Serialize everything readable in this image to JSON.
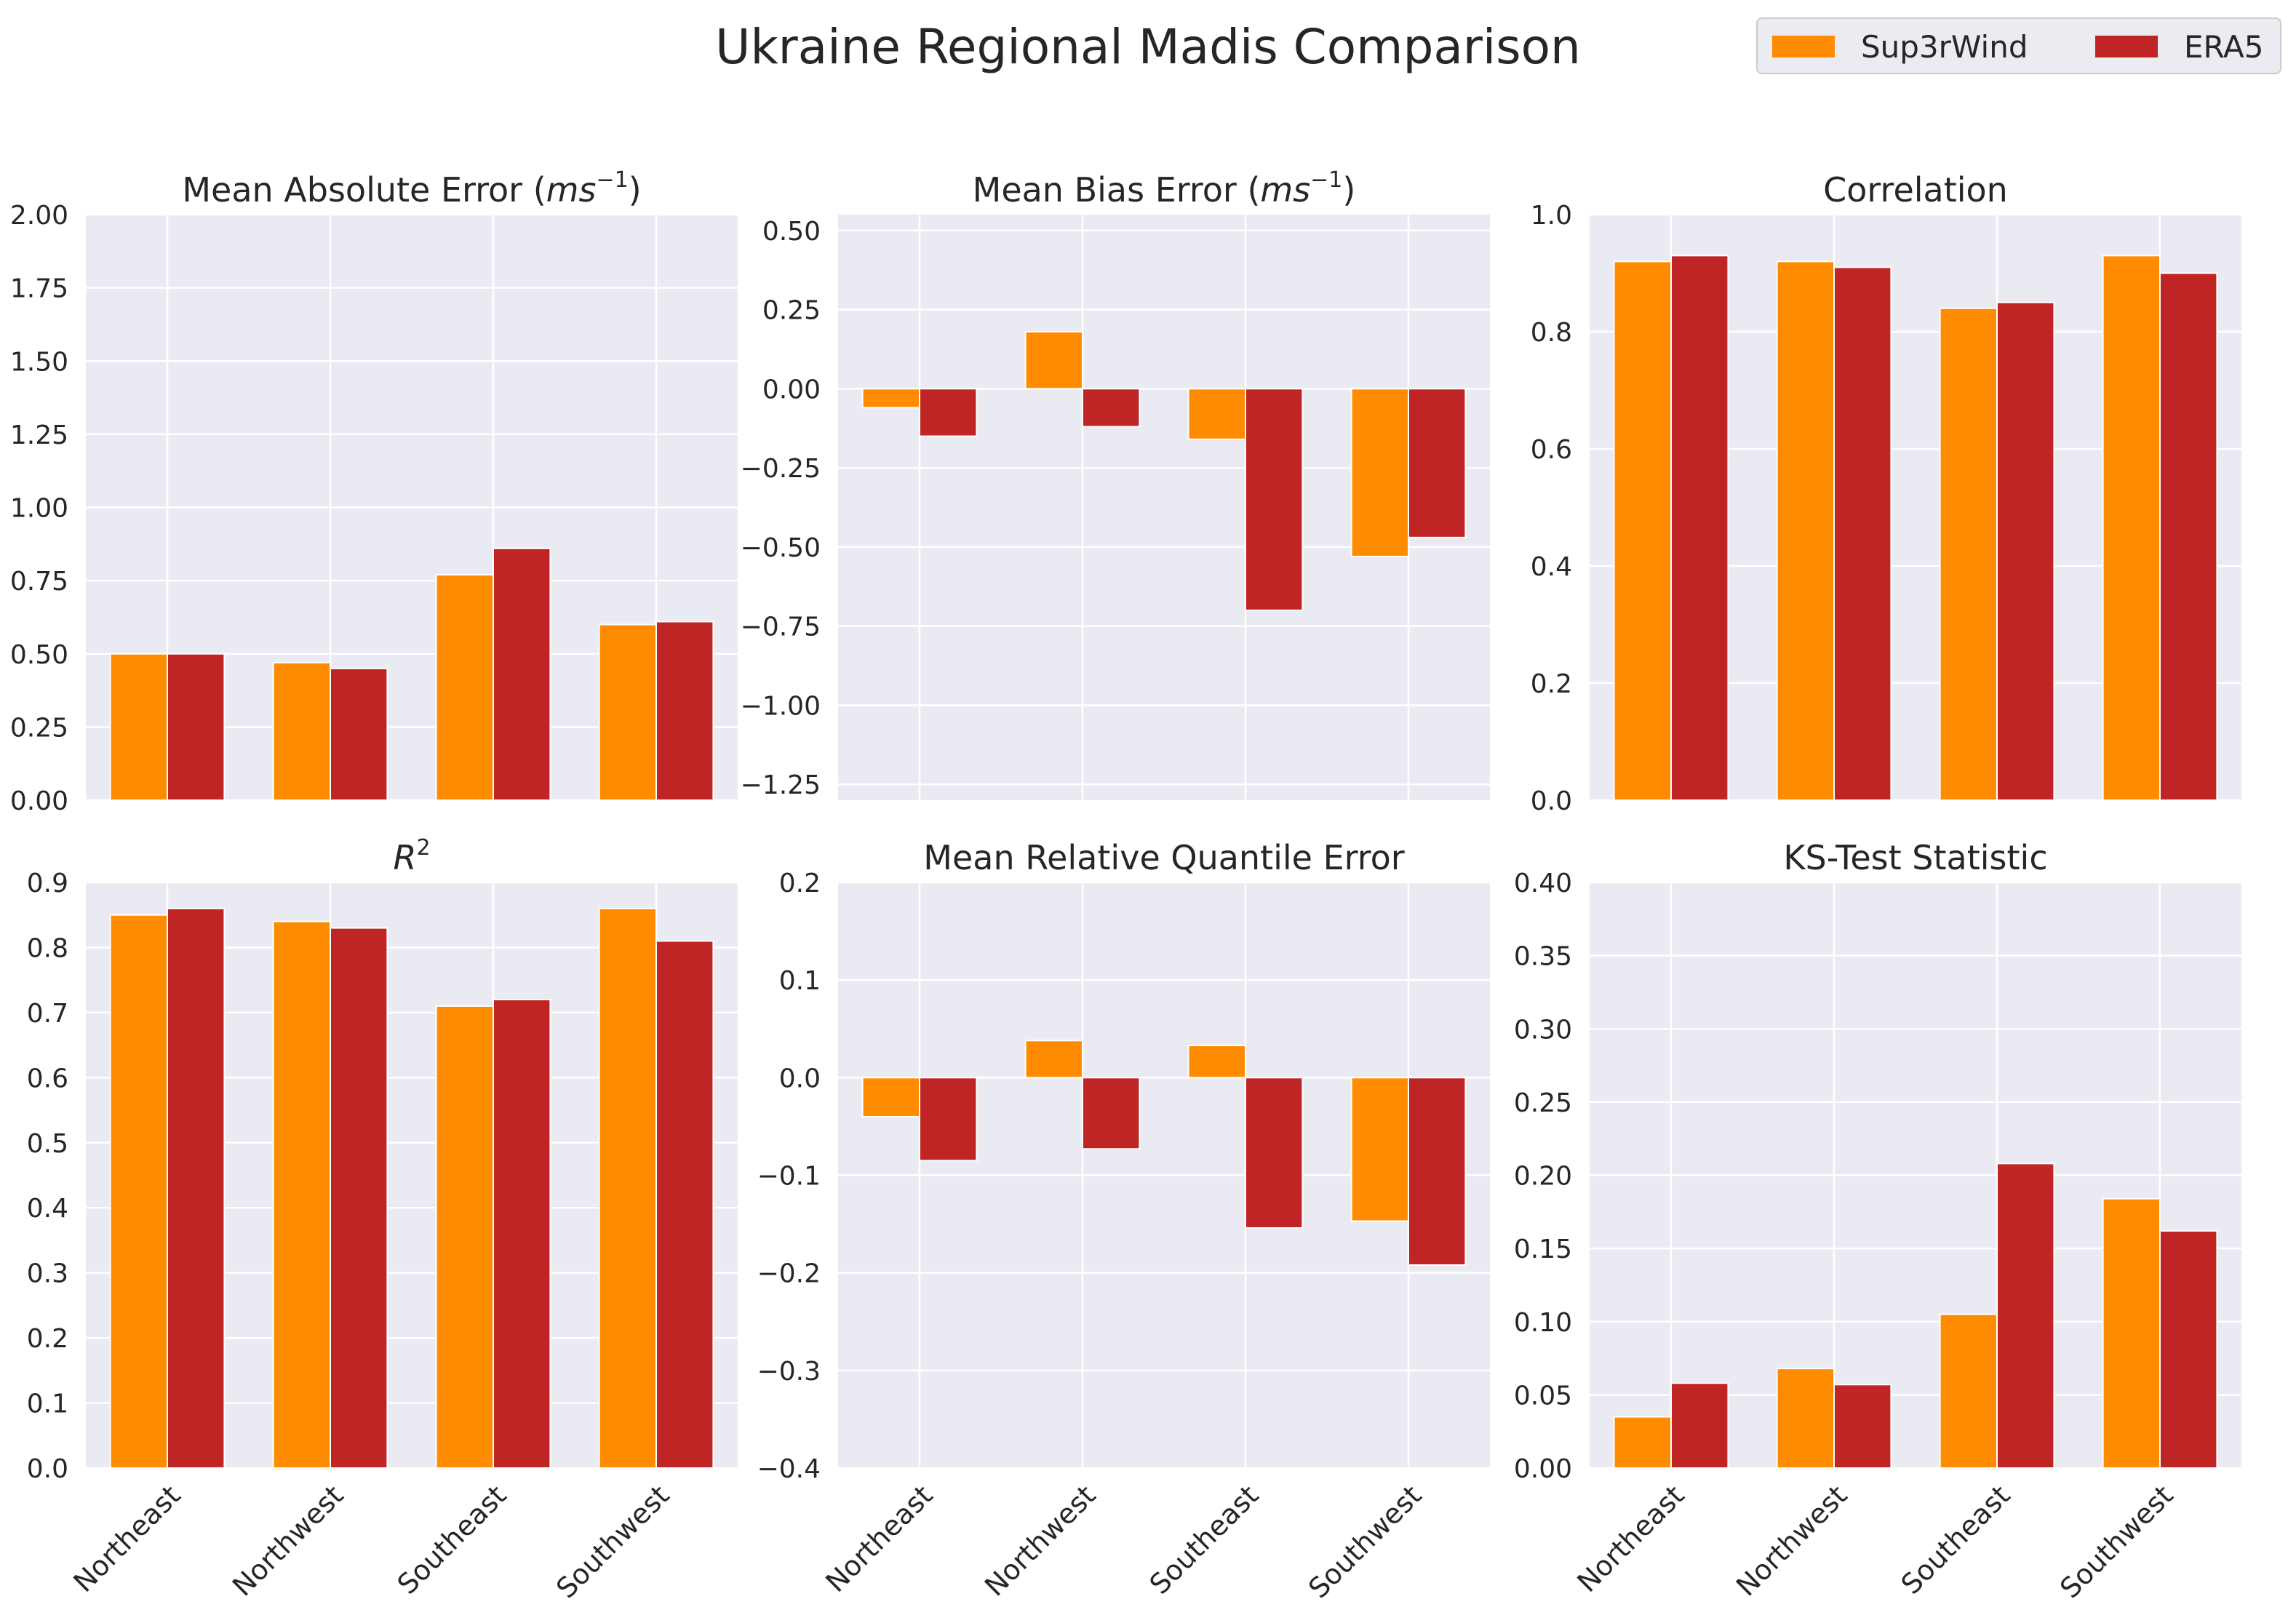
{
  "figure": {
    "title": "Ukraine Regional Madis Comparison"
  },
  "legend": {
    "items": [
      {
        "label": "Sup3rWind",
        "color": "#ff8c00"
      },
      {
        "label": "ERA5",
        "color": "#c02525"
      }
    ]
  },
  "chart_data": [
    {
      "type": "bar",
      "title": "Mean Absolute Error (ms⁻¹)",
      "title_main": "Mean Absolute Error (",
      "title_unit": "ms",
      "title_sup": "−1",
      "title_end": ")",
      "categories": [
        "Northeast",
        "Northwest",
        "Southeast",
        "Southwest"
      ],
      "series": [
        {
          "name": "Sup3rWind",
          "values": [
            0.5,
            0.47,
            0.77,
            0.6
          ]
        },
        {
          "name": "ERA5",
          "values": [
            0.5,
            0.45,
            0.86,
            0.61
          ]
        }
      ],
      "ylim": [
        0,
        2.0
      ],
      "yticks": [
        0.0,
        0.25,
        0.5,
        0.75,
        1.0,
        1.25,
        1.5,
        1.75,
        2.0
      ],
      "ytick_labels": [
        "0.00",
        "0.25",
        "0.50",
        "0.75",
        "1.00",
        "1.25",
        "1.50",
        "1.75",
        "2.00"
      ],
      "xticks_visible": false
    },
    {
      "type": "bar",
      "title": "Mean Bias Error (ms⁻¹)",
      "title_main": "Mean Bias Error (",
      "title_unit": "ms",
      "title_sup": "−1",
      "title_end": ")",
      "categories": [
        "Northeast",
        "Northwest",
        "Southeast",
        "Southwest"
      ],
      "series": [
        {
          "name": "Sup3rWind",
          "values": [
            -0.06,
            0.18,
            -0.16,
            -0.53
          ]
        },
        {
          "name": "ERA5",
          "values": [
            -0.15,
            -0.12,
            -0.7,
            -0.47
          ]
        }
      ],
      "ylim": [
        -1.3,
        0.55
      ],
      "yticks": [
        -1.25,
        -1.0,
        -0.75,
        -0.5,
        -0.25,
        0.0,
        0.25,
        0.5
      ],
      "ytick_labels": [
        "−1.25",
        "−1.00",
        "−0.75",
        "−0.50",
        "−0.25",
        "0.00",
        "0.25",
        "0.50"
      ],
      "xticks_visible": false
    },
    {
      "type": "bar",
      "title": "Correlation",
      "categories": [
        "Northeast",
        "Northwest",
        "Southeast",
        "Southwest"
      ],
      "series": [
        {
          "name": "Sup3rWind",
          "values": [
            0.92,
            0.92,
            0.84,
            0.93
          ]
        },
        {
          "name": "ERA5",
          "values": [
            0.93,
            0.91,
            0.85,
            0.9
          ]
        }
      ],
      "ylim": [
        0,
        1.0
      ],
      "yticks": [
        0.0,
        0.2,
        0.4,
        0.6,
        0.8,
        1.0
      ],
      "ytick_labels": [
        "0.0",
        "0.2",
        "0.4",
        "0.6",
        "0.8",
        "1.0"
      ],
      "xticks_visible": false
    },
    {
      "type": "bar",
      "title": "R²",
      "title_main": "R",
      "title_sup": "2",
      "categories": [
        "Northeast",
        "Northwest",
        "Southeast",
        "Southwest"
      ],
      "series": [
        {
          "name": "Sup3rWind",
          "values": [
            0.85,
            0.84,
            0.71,
            0.86
          ]
        },
        {
          "name": "ERA5",
          "values": [
            0.86,
            0.83,
            0.72,
            0.81
          ]
        }
      ],
      "ylim": [
        0,
        0.9
      ],
      "yticks": [
        0.0,
        0.1,
        0.2,
        0.3,
        0.4,
        0.5,
        0.6,
        0.7,
        0.8,
        0.9
      ],
      "ytick_labels": [
        "0.0",
        "0.1",
        "0.2",
        "0.3",
        "0.4",
        "0.5",
        "0.6",
        "0.7",
        "0.8",
        "0.9"
      ],
      "xticks_visible": true
    },
    {
      "type": "bar",
      "title": "Mean Relative Quantile Error",
      "categories": [
        "Northeast",
        "Northwest",
        "Southeast",
        "Southwest"
      ],
      "series": [
        {
          "name": "Sup3rWind",
          "values": [
            -0.04,
            0.038,
            0.033,
            -0.147
          ]
        },
        {
          "name": "ERA5",
          "values": [
            -0.085,
            -0.073,
            -0.154,
            -0.192
          ]
        }
      ],
      "ylim": [
        -0.4,
        0.2
      ],
      "yticks": [
        -0.4,
        -0.3,
        -0.2,
        -0.1,
        0.0,
        0.1,
        0.2
      ],
      "ytick_labels": [
        "−0.4",
        "−0.3",
        "−0.2",
        "−0.1",
        "0.0",
        "0.1",
        "0.2"
      ],
      "xticks_visible": true
    },
    {
      "type": "bar",
      "title": "KS-Test Statistic",
      "categories": [
        "Northeast",
        "Northwest",
        "Southeast",
        "Southwest"
      ],
      "series": [
        {
          "name": "Sup3rWind",
          "values": [
            0.035,
            0.068,
            0.105,
            0.184
          ]
        },
        {
          "name": "ERA5",
          "values": [
            0.058,
            0.057,
            0.208,
            0.162
          ]
        }
      ],
      "ylim": [
        0,
        0.4
      ],
      "yticks": [
        0.0,
        0.05,
        0.1,
        0.15,
        0.2,
        0.25,
        0.3,
        0.35,
        0.4
      ],
      "ytick_labels": [
        "0.00",
        "0.05",
        "0.10",
        "0.15",
        "0.20",
        "0.25",
        "0.30",
        "0.35",
        "0.40"
      ],
      "xticks_visible": true
    }
  ]
}
